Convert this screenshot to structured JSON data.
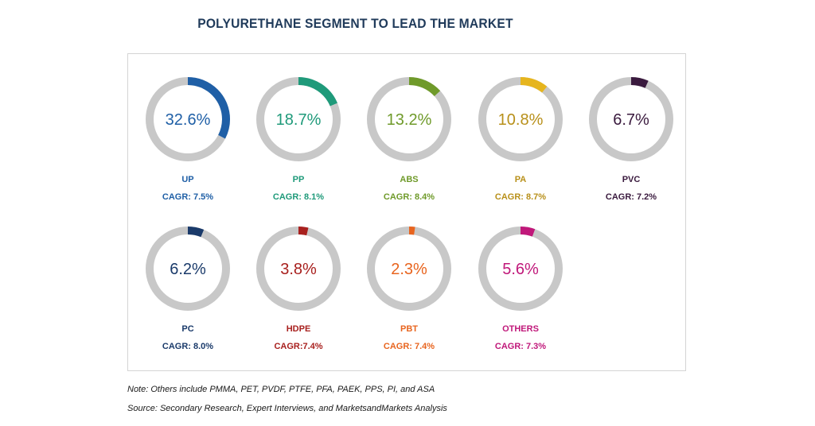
{
  "title": "POLYURETHANE SEGMENT TO LEAD THE MARKET",
  "note": "Note: Others include PMMA, PET, PVDF, PTFE, PFA, PAEK, PPS, PI, and ASA",
  "source": "Source: Secondary Research, Expert Interviews, and MarketsandMarkets Analysis",
  "chart_data": {
    "type": "pie",
    "style": "donut-grid",
    "track_color": "#c8c8c8",
    "segments": [
      {
        "name": "UP",
        "value": 32.6,
        "value_label": "32.6%",
        "cagr": "CAGR: 7.5%",
        "color": "#1f5fa6"
      },
      {
        "name": "PP",
        "value": 18.7,
        "value_label": "18.7%",
        "cagr": "CAGR: 8.1%",
        "color": "#1f9a7a"
      },
      {
        "name": "ABS",
        "value": 13.2,
        "value_label": "13.2%",
        "cagr": "CAGR: 8.4%",
        "color": "#6f9a2a"
      },
      {
        "name": "PA",
        "value": 10.8,
        "value_label": "10.8%",
        "cagr": "CAGR: 8.7%",
        "color": "#b8901a",
        "arc_color": "#e6b51e"
      },
      {
        "name": "PVC",
        "value": 6.7,
        "value_label": "6.7%",
        "cagr": "CAGR: 7.2%",
        "color": "#3a1a3e"
      },
      {
        "name": "PC",
        "value": 6.2,
        "value_label": "6.2%",
        "cagr": "CAGR: 8.0%",
        "color": "#1a3a6a"
      },
      {
        "name": "HDPE",
        "value": 3.8,
        "value_label": "3.8%",
        "cagr": "CAGR:7.4%",
        "color": "#a8201e"
      },
      {
        "name": "PBT",
        "value": 2.3,
        "value_label": "2.3%",
        "cagr": "CAGR: 7.4%",
        "color": "#e8641e"
      },
      {
        "name": "OTHERS",
        "value": 5.6,
        "value_label": "5.6%",
        "cagr": "CAGR: 7.3%",
        "color": "#c0187a"
      }
    ]
  }
}
